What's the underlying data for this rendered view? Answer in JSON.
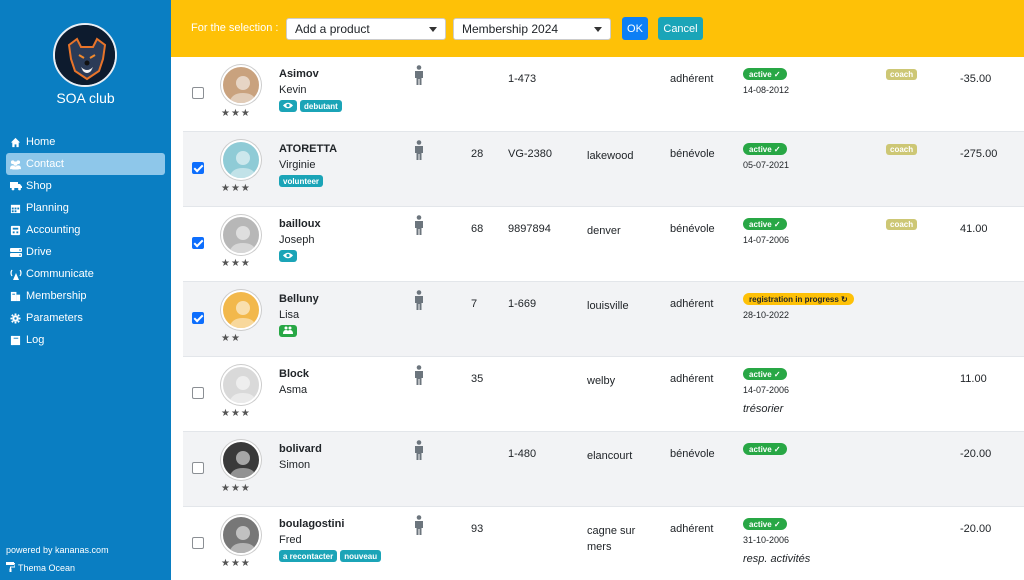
{
  "sidebar": {
    "club_name": "SOA club",
    "items": [
      {
        "label": "Home",
        "icon": "home-icon"
      },
      {
        "label": "Contact",
        "icon": "users-icon",
        "active": true
      },
      {
        "label": "Shop",
        "icon": "truck-icon"
      },
      {
        "label": "Planning",
        "icon": "calendar-icon"
      },
      {
        "label": "Accounting",
        "icon": "accounting-icon"
      },
      {
        "label": "Drive",
        "icon": "drive-icon"
      },
      {
        "label": "Communicate",
        "icon": "broadcast-icon"
      },
      {
        "label": "Membership",
        "icon": "membership-icon"
      },
      {
        "label": "Parameters",
        "icon": "gear-icon"
      },
      {
        "label": "Log",
        "icon": "log-icon"
      }
    ],
    "powered_by": "powered by kananas.com",
    "theme": "Thema Ocean"
  },
  "toolbar": {
    "label": "For the selection :",
    "action_select": "Add a product",
    "product_select": "Membership 2024",
    "ok": "OK",
    "cancel": "Cancel"
  },
  "colors": {
    "sidebar": "#0a7ec2",
    "toolbar": "#fec107",
    "active_badge": "#28a745",
    "tag": "#1ba4b7",
    "coach": "#cdc775"
  },
  "rows": [
    {
      "last": "Asimov",
      "first": "Kevin",
      "checked": false,
      "stars": "★★★",
      "tags": [
        {
          "icon": "eye-icon"
        },
        {
          "text": "debutant"
        }
      ],
      "age": "",
      "num": "1-473",
      "city": "",
      "role": "adhérent",
      "status": "active ✓",
      "date": "14-08-2012",
      "office": "",
      "coach": "coach",
      "amount": "-35.00"
    },
    {
      "last": "ATORETTA",
      "first": "Virginie",
      "checked": true,
      "stars": "★★★",
      "tags": [
        {
          "text": "volunteer"
        }
      ],
      "age": "28",
      "num": "VG-2380",
      "city": "lakewood",
      "role": "bénévole",
      "status": "active ✓",
      "date": "05-07-2021",
      "office": "",
      "coach": "coach",
      "amount": "-275.00"
    },
    {
      "last": "bailloux",
      "first": "Joseph",
      "checked": true,
      "stars": "★★★",
      "tags": [
        {
          "icon": "eye-icon"
        }
      ],
      "age": "68",
      "num": "9897894",
      "city": "denver",
      "role": "bénévole",
      "status": "active ✓",
      "date": "14-07-2006",
      "office": "",
      "coach": "coach",
      "amount": "41.00"
    },
    {
      "last": "Belluny",
      "first": "Lisa",
      "checked": true,
      "stars": "★★",
      "tags": [
        {
          "icon": "group-icon",
          "green": true
        }
      ],
      "age": "7",
      "num": "1-669",
      "city": "louisville",
      "role": "adhérent",
      "status": "registration in progress ↻",
      "progress": true,
      "date": "28-10-2022",
      "office": "",
      "coach": "",
      "amount": ""
    },
    {
      "last": "Block",
      "first": "Asma",
      "checked": false,
      "stars": "★★★",
      "tags": [],
      "age": "35",
      "num": "",
      "city": "welby",
      "role": "adhérent",
      "status": "active ✓",
      "date": "14-07-2006",
      "office": "trésorier",
      "coach": "",
      "amount": "11.00"
    },
    {
      "last": "bolivard",
      "first": "Simon",
      "checked": false,
      "stars": "★★★",
      "tags": [],
      "age": "",
      "num": "1-480",
      "city": "elancourt",
      "role": "bénévole",
      "status": "active ✓",
      "date": "",
      "office": "",
      "coach": "",
      "amount": "-20.00"
    },
    {
      "last": "boulagostini",
      "first": "Fred",
      "checked": false,
      "stars": "★★★",
      "tags": [
        {
          "text": "a recontacter"
        },
        {
          "text": "nouveau"
        }
      ],
      "age": "93",
      "num": "",
      "city": "cagne sur mers",
      "role": "adhérent",
      "status": "active ✓",
      "date": "31-10-2006",
      "office": "resp. activités",
      "coach": "",
      "amount": "-20.00"
    }
  ]
}
